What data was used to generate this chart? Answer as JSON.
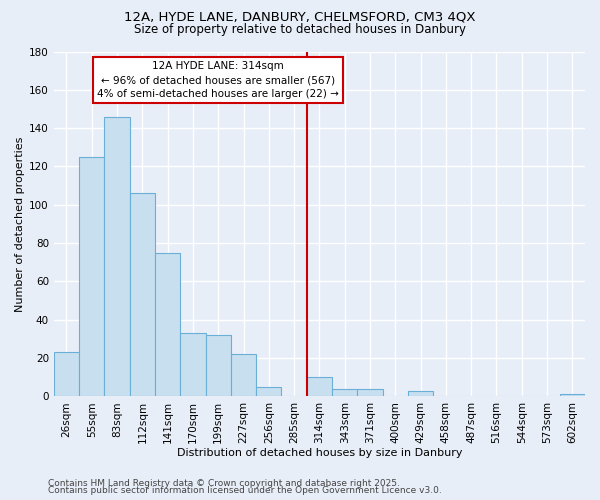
{
  "title1": "12A, HYDE LANE, DANBURY, CHELMSFORD, CM3 4QX",
  "title2": "Size of property relative to detached houses in Danbury",
  "xlabel": "Distribution of detached houses by size in Danbury",
  "ylabel": "Number of detached properties",
  "bar_labels": [
    "26sqm",
    "55sqm",
    "83sqm",
    "112sqm",
    "141sqm",
    "170sqm",
    "199sqm",
    "227sqm",
    "256sqm",
    "285sqm",
    "314sqm",
    "343sqm",
    "371sqm",
    "400sqm",
    "429sqm",
    "458sqm",
    "487sqm",
    "516sqm",
    "544sqm",
    "573sqm",
    "602sqm"
  ],
  "bar_heights": [
    23,
    125,
    146,
    106,
    75,
    33,
    32,
    22,
    5,
    0,
    10,
    4,
    4,
    0,
    3,
    0,
    0,
    0,
    0,
    0,
    1
  ],
  "bar_color": "#c8dff0",
  "bar_edge_color": "#6aafd6",
  "vline_color": "#cc0000",
  "annotation_title": "12A HYDE LANE: 314sqm",
  "annotation_line1": "← 96% of detached houses are smaller (567)",
  "annotation_line2": "4% of semi-detached houses are larger (22) →",
  "annotation_box_color": "#ffffff",
  "annotation_box_edge": "#cc0000",
  "ylim": [
    0,
    180
  ],
  "yticks": [
    0,
    20,
    40,
    60,
    80,
    100,
    120,
    140,
    160,
    180
  ],
  "footer1": "Contains HM Land Registry data © Crown copyright and database right 2025.",
  "footer2": "Contains public sector information licensed under the Open Government Licence v3.0.",
  "bg_color": "#e8eef8",
  "grid_color": "#ffffff",
  "title_fontsize": 9.5,
  "subtitle_fontsize": 8.5,
  "axis_label_fontsize": 8,
  "tick_fontsize": 7.5,
  "annotation_fontsize": 7.5,
  "footer_fontsize": 6.5
}
